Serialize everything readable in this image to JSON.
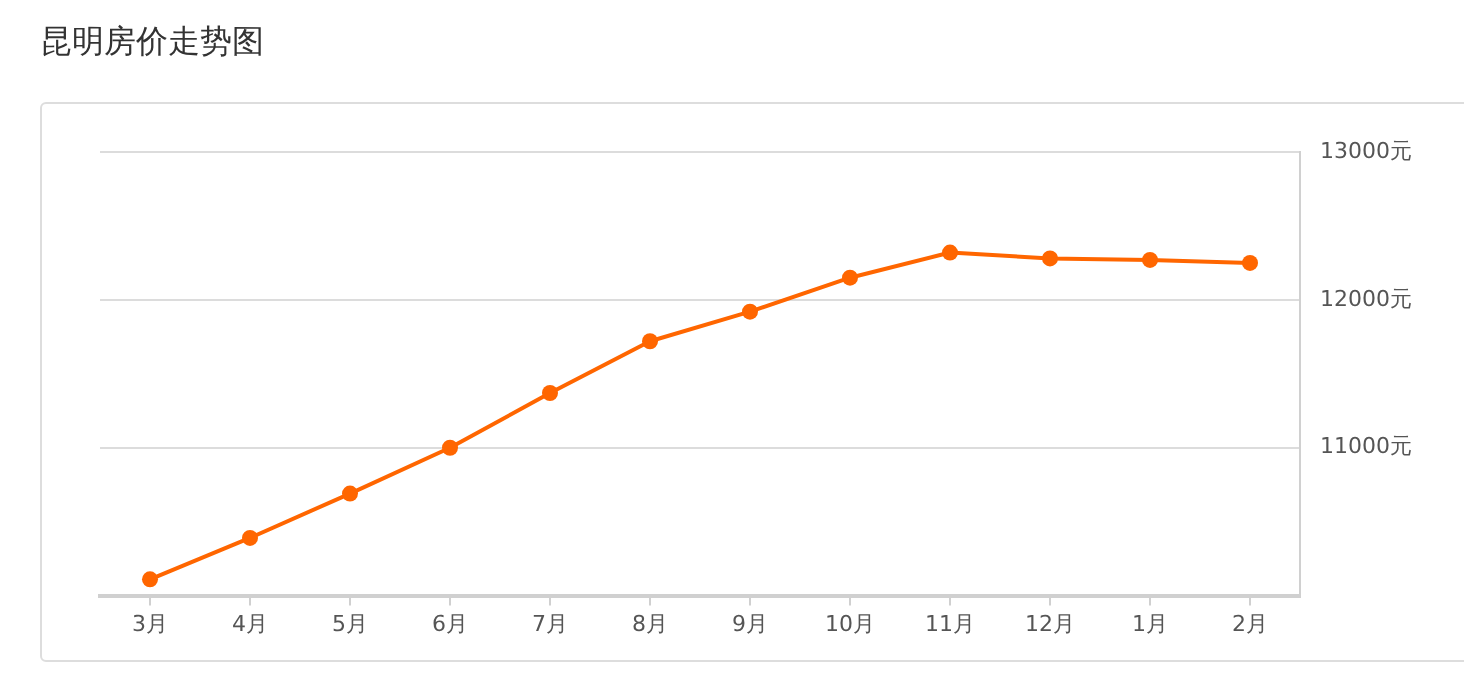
{
  "chart_data": {
    "type": "line",
    "title": "昆明房价走势图",
    "categories": [
      "3月",
      "4月",
      "5月",
      "6月",
      "7月",
      "8月",
      "9月",
      "10月",
      "11月",
      "12月",
      "1月",
      "2月"
    ],
    "series": [
      {
        "color": "#ff6600",
        "values": [
          10110,
          10390,
          10690,
          11000,
          11370,
          11720,
          11920,
          12150,
          12320,
          12280,
          12270,
          12250
        ]
      }
    ],
    "ylim": [
      10000,
      13000
    ],
    "yticks": [
      {
        "value": 10000,
        "label": null
      },
      {
        "value": 11000,
        "label": "11000元"
      },
      {
        "value": 12000,
        "label": "12000元"
      },
      {
        "value": 13000,
        "label": "13000元"
      }
    ],
    "grid": "y",
    "marker": "circle",
    "line_style": "solid"
  }
}
